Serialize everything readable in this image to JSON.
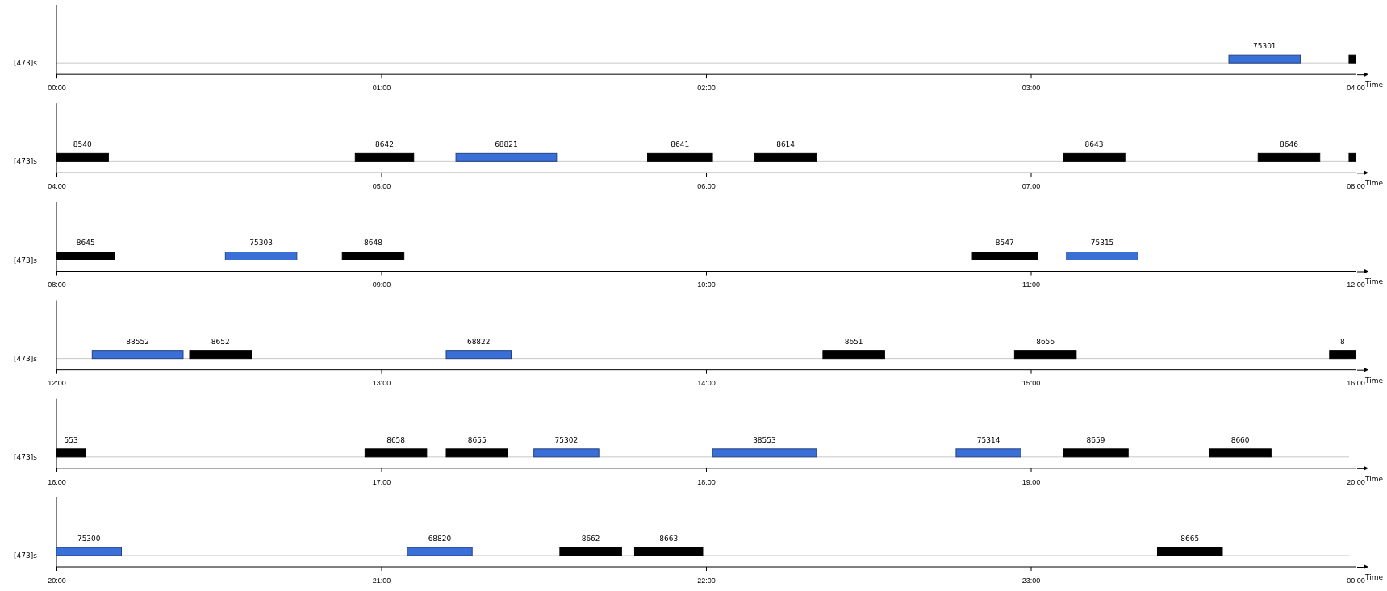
{
  "chart_data": [
    {
      "type": "bar",
      "orientation": "horizontal",
      "categories": [
        "[473]s"
      ],
      "xlabel": "Time",
      "grid": "y",
      "xlim": [
        0,
        4
      ],
      "xticks": [
        {
          "value": 0,
          "label": "00:00"
        },
        {
          "value": 1,
          "label": "01:00"
        },
        {
          "value": 2,
          "label": "02:00"
        },
        {
          "value": 3,
          "label": "03:00"
        },
        {
          "value": 4,
          "label": "04:00"
        }
      ],
      "series": [
        {
          "name": "75301",
          "color": "#3b6fd8",
          "base": [
            3.61
          ],
          "values": [
            0.22
          ]
        },
        {
          "color": "#000000",
          "base": [
            3.98
          ],
          "values": [
            0.02
          ]
        }
      ]
    },
    {
      "type": "bar",
      "orientation": "horizontal",
      "categories": [
        "[473]s"
      ],
      "xlabel": "Time",
      "grid": "y",
      "xlim": [
        4,
        8
      ],
      "xticks": [
        {
          "value": 4,
          "label": "04:00"
        },
        {
          "value": 5,
          "label": "05:00"
        },
        {
          "value": 6,
          "label": "06:00"
        },
        {
          "value": 7,
          "label": "07:00"
        },
        {
          "value": 8,
          "label": "08:00"
        }
      ],
      "series": [
        {
          "name": "8540",
          "color": "#000000",
          "base": [
            4.0
          ],
          "values": [
            0.16
          ]
        },
        {
          "name": "8642",
          "color": "#000000",
          "base": [
            4.92
          ],
          "values": [
            0.18
          ]
        },
        {
          "name": "68821",
          "color": "#3b6fd8",
          "base": [
            5.23
          ],
          "values": [
            0.31
          ]
        },
        {
          "name": "8641",
          "color": "#000000",
          "base": [
            5.82
          ],
          "values": [
            0.2
          ]
        },
        {
          "name": "8614",
          "color": "#000000",
          "base": [
            6.15
          ],
          "values": [
            0.19
          ]
        },
        {
          "name": "8643",
          "color": "#000000",
          "base": [
            7.1
          ],
          "values": [
            0.19
          ]
        },
        {
          "name": "8646",
          "color": "#000000",
          "base": [
            7.7
          ],
          "values": [
            0.19
          ]
        },
        {
          "color": "#000000",
          "base": [
            7.98
          ],
          "values": [
            0.02
          ]
        }
      ]
    },
    {
      "type": "bar",
      "orientation": "horizontal",
      "categories": [
        "[473]s"
      ],
      "xlabel": "Time",
      "grid": "y",
      "xlim": [
        8,
        12
      ],
      "xticks": [
        {
          "value": 8,
          "label": "08:00"
        },
        {
          "value": 9,
          "label": "09:00"
        },
        {
          "value": 10,
          "label": "10:00"
        },
        {
          "value": 11,
          "label": "11:00"
        },
        {
          "value": 12,
          "label": "12:00"
        }
      ],
      "series": [
        {
          "name": "8645",
          "color": "#000000",
          "base": [
            8.0
          ],
          "values": [
            0.18
          ]
        },
        {
          "name": "75303",
          "color": "#3b6fd8",
          "base": [
            8.52
          ],
          "values": [
            0.22
          ]
        },
        {
          "name": "8648",
          "color": "#000000",
          "base": [
            8.88
          ],
          "values": [
            0.19
          ]
        },
        {
          "name": "8547",
          "color": "#000000",
          "base": [
            10.82
          ],
          "values": [
            0.2
          ]
        },
        {
          "name": "75315",
          "color": "#3b6fd8",
          "base": [
            11.11
          ],
          "values": [
            0.22
          ]
        }
      ]
    },
    {
      "type": "bar",
      "orientation": "horizontal",
      "categories": [
        "[473]s"
      ],
      "xlabel": "Time",
      "grid": "y",
      "xlim": [
        12,
        16
      ],
      "xticks": [
        {
          "value": 12,
          "label": "12:00"
        },
        {
          "value": 13,
          "label": "13:00"
        },
        {
          "value": 14,
          "label": "14:00"
        },
        {
          "value": 15,
          "label": "15:00"
        },
        {
          "value": 16,
          "label": "16:00"
        }
      ],
      "series": [
        {
          "name": "88552",
          "color": "#3b6fd8",
          "base": [
            12.11
          ],
          "values": [
            0.28
          ]
        },
        {
          "name": "8652",
          "color": "#000000",
          "base": [
            12.41
          ],
          "values": [
            0.19
          ]
        },
        {
          "name": "68822",
          "color": "#3b6fd8",
          "base": [
            13.2
          ],
          "values": [
            0.2
          ]
        },
        {
          "name": "8651",
          "color": "#000000",
          "base": [
            14.36
          ],
          "values": [
            0.19
          ]
        },
        {
          "name": "8656",
          "color": "#000000",
          "base": [
            14.95
          ],
          "values": [
            0.19
          ]
        },
        {
          "name": "8",
          "color": "#000000",
          "base": [
            15.92
          ],
          "values": [
            0.08
          ]
        }
      ]
    },
    {
      "type": "bar",
      "orientation": "horizontal",
      "categories": [
        "[473]s"
      ],
      "xlabel": "Time",
      "grid": "y",
      "xlim": [
        16,
        20
      ],
      "xticks": [
        {
          "value": 16,
          "label": "16:00"
        },
        {
          "value": 17,
          "label": "17:00"
        },
        {
          "value": 18,
          "label": "18:00"
        },
        {
          "value": 19,
          "label": "19:00"
        },
        {
          "value": 20,
          "label": "20:00"
        }
      ],
      "series": [
        {
          "name": "553",
          "color": "#000000",
          "base": [
            16.0
          ],
          "values": [
            0.09
          ]
        },
        {
          "name": "8658",
          "color": "#000000",
          "base": [
            16.95
          ],
          "values": [
            0.19
          ]
        },
        {
          "name": "8655",
          "color": "#000000",
          "base": [
            17.2
          ],
          "values": [
            0.19
          ]
        },
        {
          "name": "75302",
          "color": "#3b6fd8",
          "base": [
            17.47
          ],
          "values": [
            0.2
          ]
        },
        {
          "name": "38553",
          "color": "#3b6fd8",
          "base": [
            18.02
          ],
          "values": [
            0.32
          ]
        },
        {
          "name": "75314",
          "color": "#3b6fd8",
          "base": [
            18.77
          ],
          "values": [
            0.2
          ]
        },
        {
          "name": "8659",
          "color": "#000000",
          "base": [
            19.1
          ],
          "values": [
            0.2
          ]
        },
        {
          "name": "8660",
          "color": "#000000",
          "base": [
            19.55
          ],
          "values": [
            0.19
          ]
        }
      ]
    },
    {
      "type": "bar",
      "orientation": "horizontal",
      "categories": [
        "[473]s"
      ],
      "xlabel": "Time",
      "grid": "y",
      "xlim": [
        20,
        24
      ],
      "xticks": [
        {
          "value": 20,
          "label": "20:00"
        },
        {
          "value": 21,
          "label": "21:00"
        },
        {
          "value": 22,
          "label": "22:00"
        },
        {
          "value": 23,
          "label": "23:00"
        },
        {
          "value": 24,
          "label": "00:00"
        }
      ],
      "series": [
        {
          "name": "75300",
          "color": "#3b6fd8",
          "base": [
            20.0
          ],
          "values": [
            0.2
          ]
        },
        {
          "name": "68820",
          "color": "#3b6fd8",
          "base": [
            21.08
          ],
          "values": [
            0.2
          ]
        },
        {
          "name": "8662",
          "color": "#000000",
          "base": [
            21.55
          ],
          "values": [
            0.19
          ]
        },
        {
          "name": "8663",
          "color": "#000000",
          "base": [
            21.78
          ],
          "values": [
            0.21
          ]
        },
        {
          "name": "8665",
          "color": "#000000",
          "base": [
            23.39
          ],
          "values": [
            0.2
          ]
        }
      ]
    }
  ]
}
